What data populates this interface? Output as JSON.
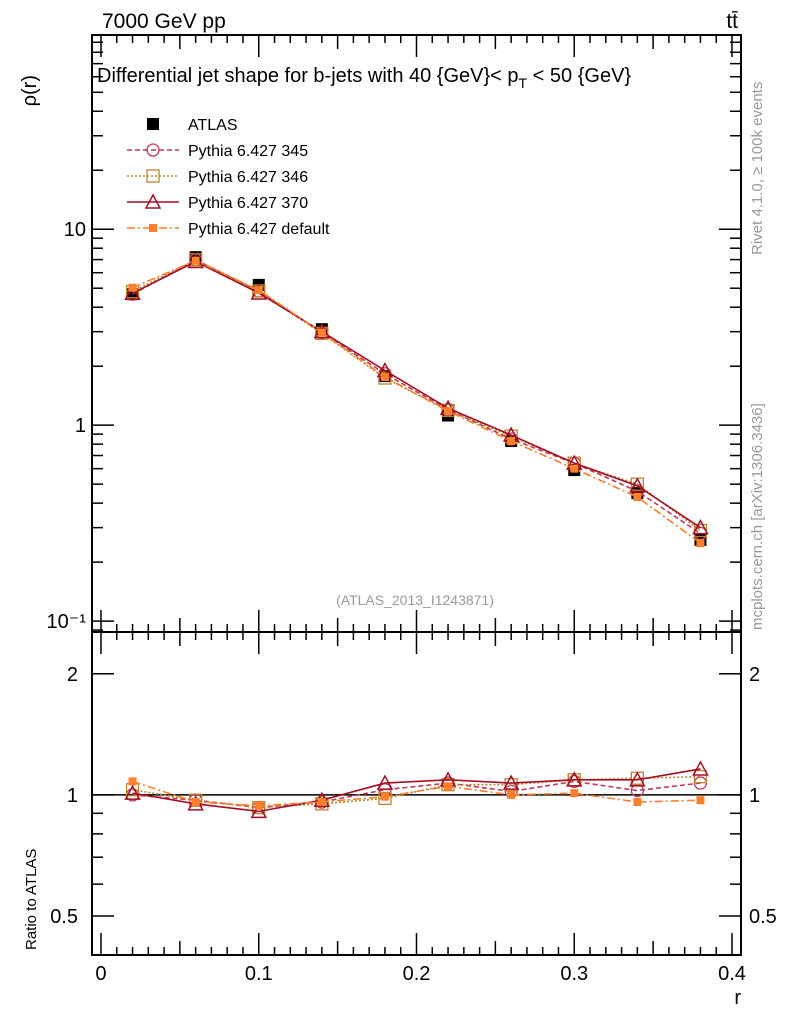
{
  "header": {
    "left": "7000 GeV pp",
    "right": "tt̄"
  },
  "side": {
    "top": "Rivet 4.1.0, ≥ 100k events",
    "bottom": "mcplots.cern.ch [arXiv:1306.3436]"
  },
  "chart_data": [
    {
      "type": "line",
      "title": "Differential jet shape for b-jets with 40 {GeV}< p_T < 50 {GeV}",
      "title_main": "Differential jet shape for b-jets with 40 {GeV}< p",
      "title_sub": "T",
      "title_end": " < 50 {GeV}",
      "ylabel": "ρ(r)",
      "yscale": "log",
      "ylim": [
        0.088,
        98
      ],
      "xlim": [
        -0.0057,
        0.4057
      ],
      "yticks": [
        {
          "v": 10,
          "label": "10"
        },
        {
          "v": 1,
          "label": "1"
        },
        {
          "v": 0.1,
          "label": "10⁻¹"
        }
      ],
      "watermark": "(ATLAS_2013_I1243871)",
      "legend_position": "top-left",
      "x": [
        0.02,
        0.06,
        0.1,
        0.14,
        0.18,
        0.22,
        0.26,
        0.3,
        0.34,
        0.38
      ],
      "series": [
        {
          "name": "ATLAS",
          "color": "#000000",
          "values": [
            4.66,
            7.2,
            5.2,
            3.09,
            1.78,
            1.12,
            0.83,
            0.59,
            0.45,
            0.26
          ]
        },
        {
          "name": "Pythia 6.427 345",
          "color": "#c0395a",
          "values": [
            4.66,
            6.98,
            4.84,
            2.97,
            1.83,
            1.2,
            0.85,
            0.64,
            0.46,
            0.28
          ]
        },
        {
          "name": "Pythia 6.427 346",
          "color": "#b8862e",
          "values": [
            4.8,
            6.98,
            4.84,
            2.94,
            1.74,
            1.19,
            0.88,
            0.64,
            0.5,
            0.29
          ]
        },
        {
          "name": "Pythia 6.427 370",
          "color": "#a50f25",
          "values": [
            4.71,
            6.84,
            4.73,
            3.0,
            1.9,
            1.22,
            0.89,
            0.64,
            0.49,
            0.3
          ]
        },
        {
          "name": "Pythia 6.427 default",
          "color": "#ff7f2a",
          "values": [
            5.03,
            6.91,
            4.89,
            2.97,
            1.76,
            1.18,
            0.83,
            0.6,
            0.43,
            0.25
          ]
        }
      ]
    },
    {
      "type": "line",
      "ylabel": "Ratio to ATLAS",
      "xlabel": "r",
      "yscale": "log",
      "ylim": [
        0.4,
        2.54
      ],
      "xlim": [
        -0.0057,
        0.4057
      ],
      "yticks": [
        {
          "v": 2,
          "label": "2"
        },
        {
          "v": 1,
          "label": "1"
        },
        {
          "v": 0.5,
          "label": "0.5"
        }
      ],
      "xticks": [
        {
          "v": 0,
          "label": "0"
        },
        {
          "v": 0.1,
          "label": "0.1"
        },
        {
          "v": 0.2,
          "label": "0.2"
        },
        {
          "v": 0.3,
          "label": "0.3"
        },
        {
          "v": 0.4,
          "label": "0.4"
        }
      ],
      "x": [
        0.02,
        0.06,
        0.1,
        0.14,
        0.18,
        0.22,
        0.26,
        0.3,
        0.34,
        0.38
      ],
      "series": [
        {
          "name": "Pythia 6.427 345",
          "values": [
            1.0,
            0.97,
            0.93,
            0.96,
            1.03,
            1.07,
            1.02,
            1.08,
            1.025,
            1.07
          ]
        },
        {
          "name": "Pythia 6.427 346",
          "values": [
            1.03,
            0.97,
            0.93,
            0.95,
            0.98,
            1.06,
            1.06,
            1.09,
            1.1,
            1.11
          ]
        },
        {
          "name": "Pythia 6.427 370",
          "values": [
            1.01,
            0.95,
            0.91,
            0.97,
            1.07,
            1.09,
            1.07,
            1.09,
            1.09,
            1.16
          ]
        },
        {
          "name": "Pythia 6.427 default",
          "values": [
            1.08,
            0.96,
            0.94,
            0.96,
            0.99,
            1.05,
            1.0,
            1.01,
            0.96,
            0.97
          ]
        }
      ]
    }
  ]
}
